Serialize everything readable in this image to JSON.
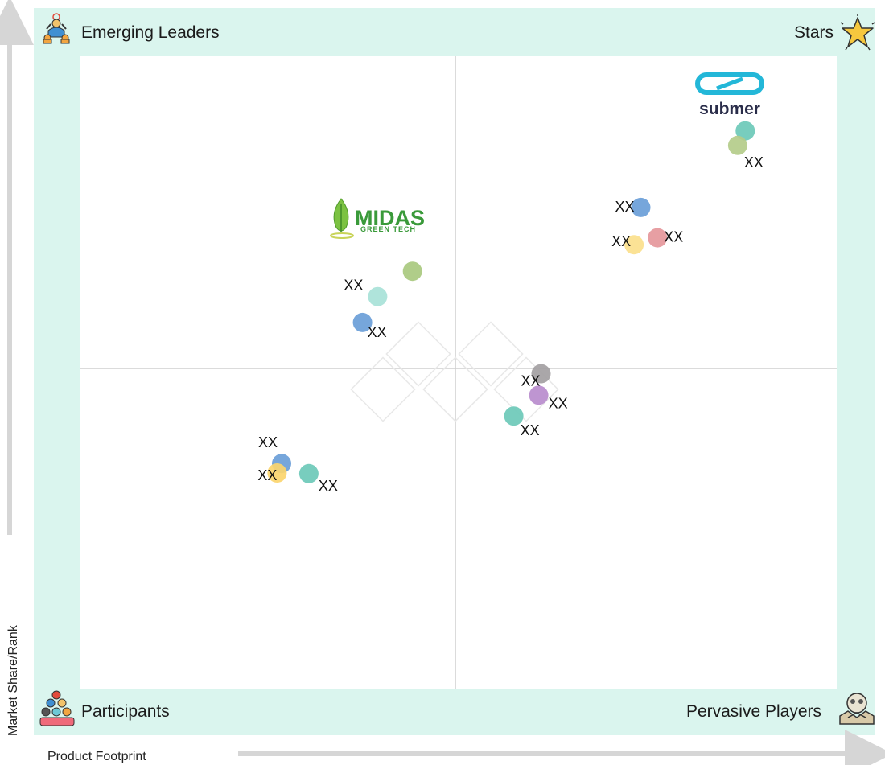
{
  "chart_data": {
    "type": "scatter",
    "xlabel": "Product Footprint",
    "ylabel": "Market Share/Rank",
    "xlim": [
      0,
      100
    ],
    "ylim": [
      0,
      100
    ],
    "quadrants": {
      "top_left": "Emerging Leaders",
      "top_right": "Stars",
      "bottom_left": "Participants",
      "bottom_right": "Pervasive Players"
    },
    "quadrant_icons": {
      "top_left": "emerging-leaders-icon",
      "top_right": "star-icon",
      "bottom_left": "participants-icon",
      "bottom_right": "handshake-icon"
    },
    "logos": [
      {
        "name": "submer",
        "text": "submer",
        "x": 86,
        "y": 95
      },
      {
        "name": "midas",
        "text": "MIDAS",
        "subtext": "GREEN TECH",
        "x": 39,
        "y": 74
      }
    ],
    "points": [
      {
        "x": 87.9,
        "y": 88.2,
        "color": "#6cc9b8",
        "label": ""
      },
      {
        "x": 86.9,
        "y": 85.9,
        "color": "#b4cc8a",
        "label": "XX"
      },
      {
        "x": 74.1,
        "y": 76.1,
        "color": "#6a9ed8",
        "label": "XX"
      },
      {
        "x": 76.3,
        "y": 71.3,
        "color": "#e5979b",
        "label": "XX"
      },
      {
        "x": 73.2,
        "y": 70.2,
        "color": "#fbe08c",
        "label": "XX"
      },
      {
        "x": 43.9,
        "y": 66.0,
        "color": "#a9c97f",
        "label": ""
      },
      {
        "x": 39.3,
        "y": 62.0,
        "color": "#a8e2d8",
        "label": "XX"
      },
      {
        "x": 37.3,
        "y": 57.9,
        "color": "#6a9ed8",
        "label": "XX"
      },
      {
        "x": 60.9,
        "y": 49.8,
        "color": "#a3a0a2",
        "label": "XX"
      },
      {
        "x": 60.6,
        "y": 46.4,
        "color": "#b98ccd",
        "label": "XX"
      },
      {
        "x": 57.3,
        "y": 43.1,
        "color": "#6cc9b8",
        "label": "XX"
      },
      {
        "x": 26.6,
        "y": 35.6,
        "color": "#6a9ed8",
        "label": "XX"
      },
      {
        "x": 26.0,
        "y": 34.1,
        "color": "#fbd56e",
        "label": "XX"
      },
      {
        "x": 30.2,
        "y": 34.0,
        "color": "#6cc9b8",
        "label": "XX"
      }
    ]
  }
}
